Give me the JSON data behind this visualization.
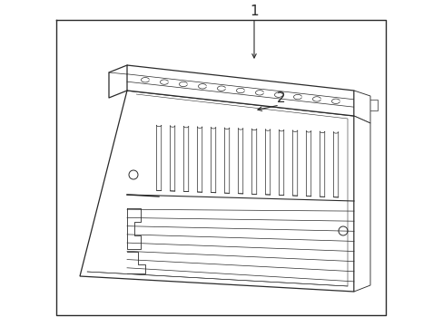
{
  "bg_color": "#ffffff",
  "line_color": "#2a2a2a",
  "line_width": 0.9,
  "font_size": 11,
  "label1": "1",
  "label2": "2",
  "fig_width": 4.89,
  "fig_height": 3.6,
  "dpi": 100
}
